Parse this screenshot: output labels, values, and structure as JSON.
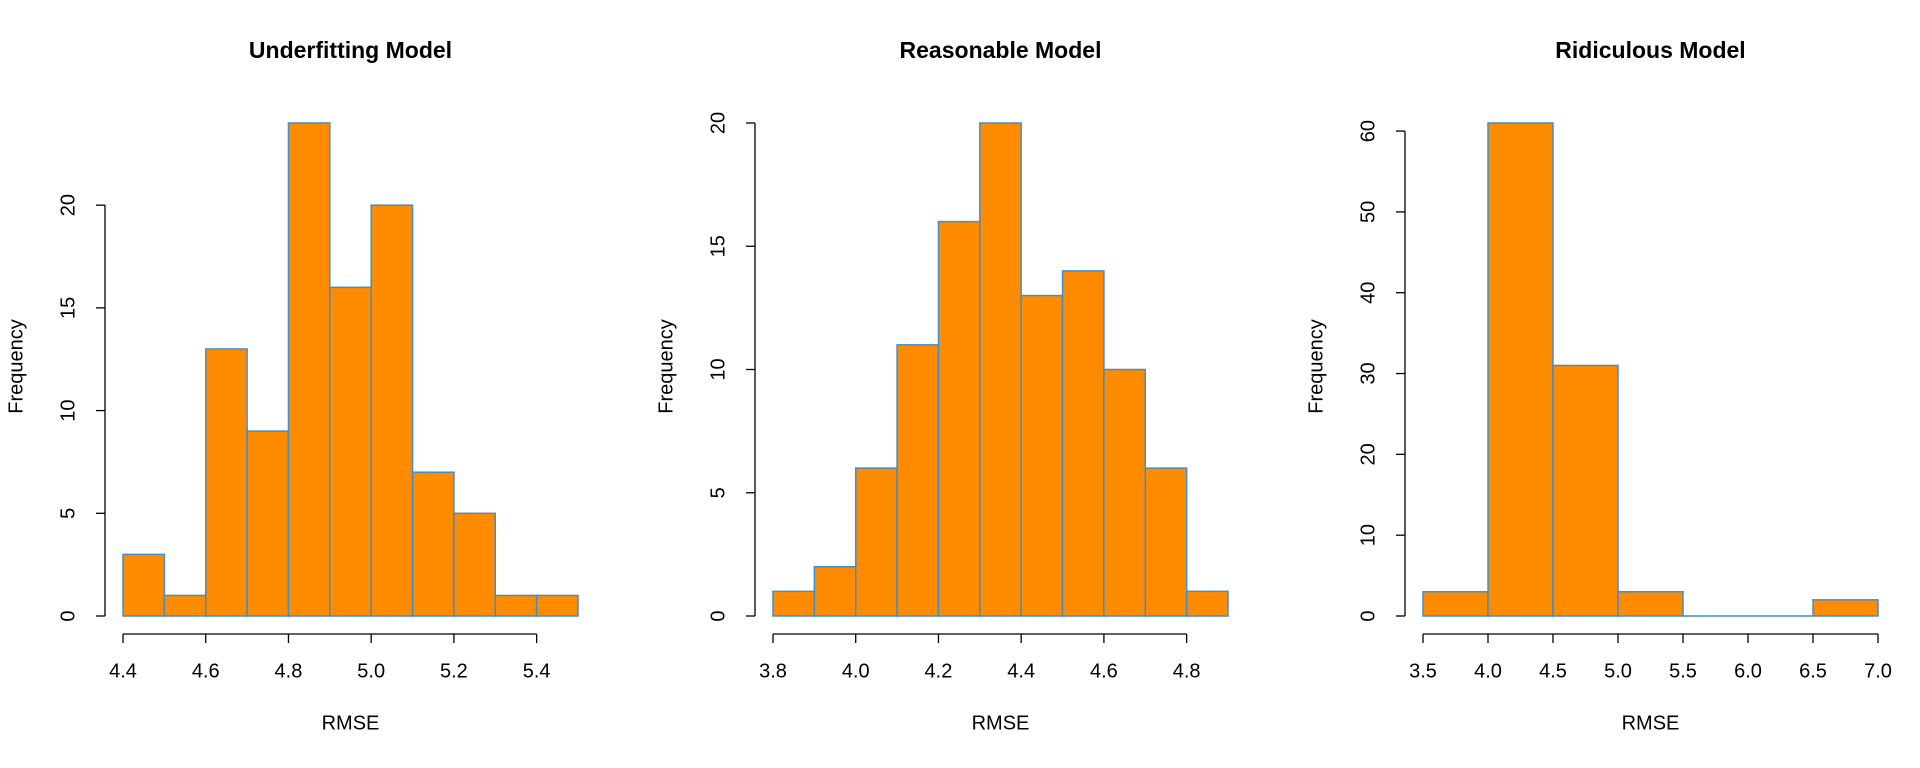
{
  "chart_data": [
    {
      "type": "histogram",
      "title": "Underfitting Model",
      "x_label": "RMSE",
      "y_label": "Frequency",
      "bins": [
        4.4,
        4.5,
        4.6,
        4.7,
        4.8,
        4.9,
        5.0,
        5.1,
        5.2,
        5.3,
        5.4,
        5.5
      ],
      "values": [
        3,
        1,
        13,
        9,
        24,
        16,
        20,
        7,
        5,
        1,
        1
      ],
      "color": "#ff8c00",
      "edgecolor": "#3a8fd6",
      "xlim": [
        4.4,
        5.5
      ],
      "xticks": [
        4.4,
        4.6,
        4.8,
        {
          "value": 5,
          "label": "5.0"
        },
        5.2,
        5.4
      ],
      "ylim": [
        0,
        24
      ],
      "yticks": [
        0,
        5,
        10,
        15,
        20
      ]
    },
    {
      "type": "histogram",
      "title": "Reasonable Model",
      "x_label": "RMSE",
      "y_label": "Frequency",
      "bins": [
        3.8,
        3.9,
        4.0,
        4.1,
        4.2,
        4.3,
        4.4,
        4.5,
        4.6,
        4.7,
        4.8,
        4.9
      ],
      "values": [
        1,
        2,
        6,
        11,
        16,
        20,
        13,
        14,
        10,
        6,
        1
      ],
      "color": "#ff8c00",
      "edgecolor": "#3a8fd6",
      "xlim": [
        3.8,
        4.9
      ],
      "xticks": [
        3.8,
        {
          "value": 4,
          "label": "4.0"
        },
        4.2,
        4.4,
        4.6,
        4.8
      ],
      "ylim": [
        0,
        20
      ],
      "yticks": [
        0,
        5,
        10,
        15,
        20
      ]
    },
    {
      "type": "histogram",
      "title": "Ridiculous Model",
      "x_label": "RMSE",
      "y_label": "Frequency",
      "bins": [
        3.5,
        4.0,
        4.5,
        5.0,
        5.5,
        6.0,
        6.5,
        7.0
      ],
      "values": [
        3,
        61,
        31,
        3,
        0,
        0,
        2
      ],
      "color": "#ff8c00",
      "edgecolor": "#3a8fd6",
      "xlim": [
        3.5,
        7.0
      ],
      "xticks": [
        3.5,
        {
          "value": 4,
          "label": "4.0"
        },
        4.5,
        {
          "value": 5,
          "label": "5.0"
        },
        5.5,
        {
          "value": 6,
          "label": "6.0"
        },
        6.5,
        {
          "value": 7,
          "label": "7.0"
        }
      ],
      "ylim": [
        0,
        61
      ],
      "yticks": [
        0,
        10,
        20,
        30,
        40,
        50,
        60
      ]
    }
  ]
}
